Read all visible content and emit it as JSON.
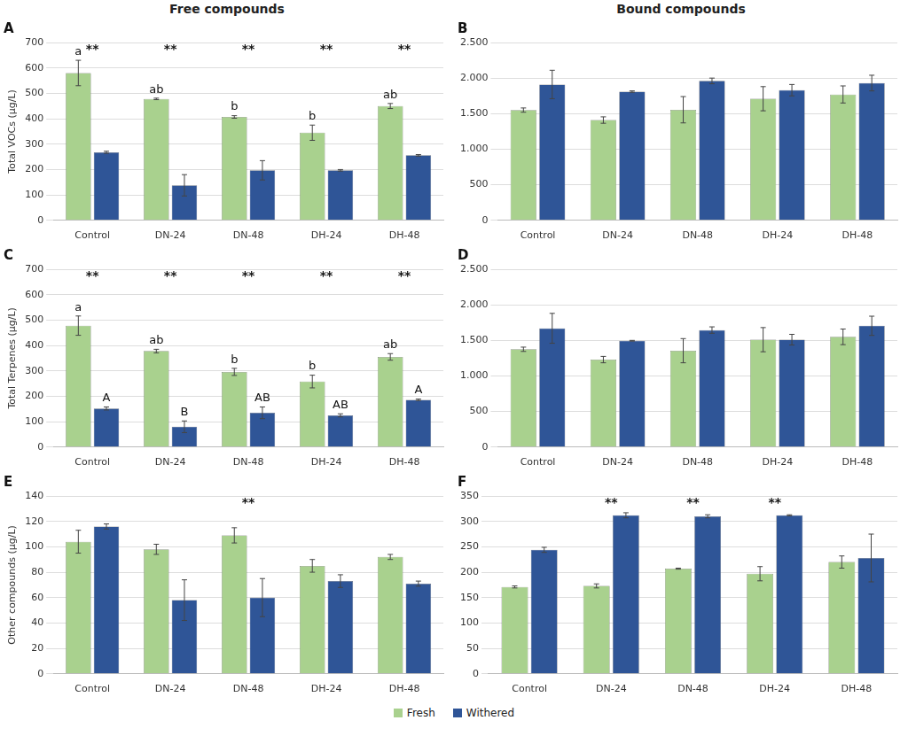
{
  "chart_data": [
    {
      "type": "bar",
      "title": "A",
      "subtitle": "Free compounds",
      "y_label": "Total VOCs (µg/L)",
      "categories": [
        "Control",
        "DN-24",
        "DN-48",
        "DH-24",
        "DH-48"
      ],
      "series": [
        {
          "name": "Fresh",
          "color": "#a9d18e",
          "values": [
            580,
            478,
            407,
            345,
            450
          ],
          "errors": [
            50,
            3,
            5,
            30,
            10
          ],
          "annotations": [
            "a",
            "ab",
            "b",
            "b",
            "ab"
          ]
        },
        {
          "name": "Withered",
          "color": "#2f5597",
          "values": [
            268,
            138,
            197,
            197,
            256
          ],
          "errors": [
            4,
            42,
            38,
            3,
            3
          ]
        }
      ],
      "annotations": [
        "**",
        "**",
        "**",
        "**",
        "**"
      ],
      "ylim": [
        0,
        700
      ],
      "yticks": [
        0,
        100,
        200,
        300,
        400,
        500,
        600,
        700
      ],
      "grid": true
    },
    {
      "type": "bar",
      "title": "B",
      "subtitle": "Bound compounds",
      "categories": [
        "Control",
        "DN-24",
        "DN-48",
        "DH-24",
        "DH-48"
      ],
      "series": [
        {
          "name": "Fresh",
          "color": "#a9d18e",
          "values": [
            1550,
            1410,
            1555,
            1710,
            1770
          ],
          "errors": [
            30,
            45,
            185,
            170,
            120
          ]
        },
        {
          "name": "Withered",
          "color": "#2f5597",
          "values": [
            1910,
            1810,
            1960,
            1830,
            1930
          ],
          "errors": [
            200,
            10,
            40,
            80,
            110
          ]
        }
      ],
      "ylim": [
        0,
        2500
      ],
      "yticks": [
        0,
        500,
        {
          "value": 1000,
          "label": "1.000"
        },
        {
          "value": 1500,
          "label": "1.500"
        },
        {
          "value": 2000,
          "label": "2.000"
        },
        {
          "value": 2500,
          "label": "2.500"
        }
      ],
      "grid": true
    },
    {
      "type": "bar",
      "title": "C",
      "y_label": "Total Terpenes (µg/L)",
      "categories": [
        "Control",
        "DN-24",
        "DN-48",
        "DH-24",
        "DH-48"
      ],
      "series": [
        {
          "name": "Fresh",
          "color": "#a9d18e",
          "values": [
            478,
            378,
            296,
            258,
            355
          ],
          "errors": [
            38,
            7,
            14,
            25,
            13
          ],
          "annotations": [
            "a",
            "ab",
            "b",
            "b",
            "ab"
          ]
        },
        {
          "name": "Withered",
          "color": "#2f5597",
          "values": [
            152,
            80,
            135,
            125,
            186
          ],
          "errors": [
            6,
            23,
            23,
            6,
            3
          ],
          "annotations": [
            "A",
            "B",
            "AB",
            "AB",
            "A"
          ]
        }
      ],
      "annotations": [
        "**",
        "**",
        "**",
        "**",
        "**"
      ],
      "ylim": [
        0,
        700
      ],
      "yticks": [
        0,
        100,
        200,
        300,
        400,
        500,
        600,
        700
      ],
      "grid": true
    },
    {
      "type": "bar",
      "title": "D",
      "categories": [
        "Control",
        "DN-24",
        "DN-48",
        "DH-24",
        "DH-48"
      ],
      "series": [
        {
          "name": "Fresh",
          "color": "#a9d18e",
          "values": [
            1375,
            1230,
            1355,
            1510,
            1550
          ],
          "errors": [
            30,
            45,
            170,
            170,
            110
          ]
        },
        {
          "name": "Withered",
          "color": "#2f5597",
          "values": [
            1670,
            1495,
            1645,
            1510,
            1705
          ],
          "errors": [
            210,
            5,
            45,
            75,
            135
          ]
        }
      ],
      "ylim": [
        0,
        2500
      ],
      "yticks": [
        0,
        500,
        {
          "value": 1000,
          "label": "1.000"
        },
        {
          "value": 1500,
          "label": "1.500"
        },
        {
          "value": 2000,
          "label": "2.000"
        },
        {
          "value": 2500,
          "label": "2.500"
        }
      ],
      "grid": true
    },
    {
      "type": "bar",
      "title": "E",
      "y_label": "Other compounds (µg/L)",
      "categories": [
        "Control",
        "DN-24",
        "DN-48",
        "DH-24",
        "DH-48"
      ],
      "series": [
        {
          "name": "Fresh",
          "color": "#a9d18e",
          "values": [
            104,
            98,
            109,
            85,
            92
          ],
          "errors": [
            9,
            4,
            6,
            5,
            2
          ]
        },
        {
          "name": "Withered",
          "color": "#2f5597",
          "values": [
            116,
            58,
            60,
            73,
            71
          ],
          "errors": [
            2,
            16,
            15,
            5,
            2
          ]
        }
      ],
      "annotations": [
        null,
        null,
        "**",
        null,
        null
      ],
      "ylim": [
        0,
        140
      ],
      "yticks": [
        0,
        20,
        40,
        60,
        80,
        100,
        120,
        140
      ],
      "grid": true,
      "legend": "bottom"
    },
    {
      "type": "bar",
      "title": "F",
      "categories": [
        "Control",
        "DN-24",
        "DN-48",
        "DH-24",
        "DH-48"
      ],
      "series": [
        {
          "name": "Fresh",
          "color": "#a9d18e",
          "values": [
            171,
            173,
            207,
            197,
            220
          ],
          "errors": [
            2,
            4,
            1,
            14,
            12
          ]
        },
        {
          "name": "Withered",
          "color": "#2f5597",
          "values": [
            244,
            312,
            310,
            312,
            228
          ],
          "errors": [
            5,
            5,
            3,
            1,
            47
          ]
        }
      ],
      "annotations": [
        null,
        "**",
        "**",
        "**",
        null
      ],
      "ylim": [
        0,
        350
      ],
      "yticks": [
        0,
        50,
        100,
        150,
        200,
        250,
        300,
        350
      ],
      "grid": true
    }
  ]
}
